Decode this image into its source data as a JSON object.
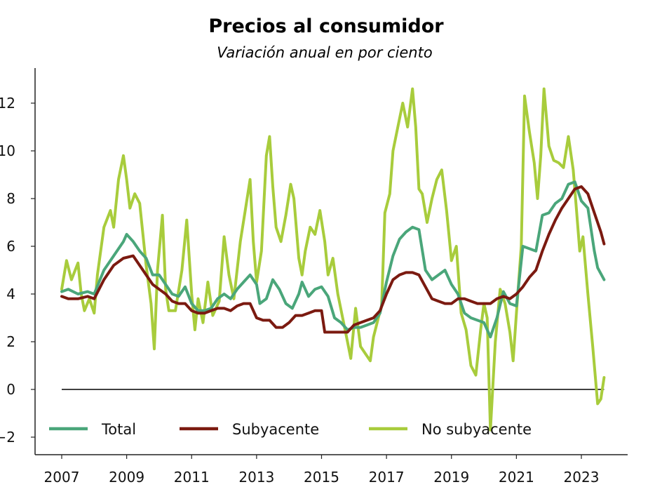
{
  "chart_data": {
    "type": "line",
    "title": "Precios al consumidor",
    "subtitle": "Variación anual en por ciento",
    "xlim": [
      2007,
      2023.8
    ],
    "ylim": [
      -2.7,
      13.5
    ],
    "yticks": [
      -2,
      0,
      2,
      4,
      6,
      8,
      10,
      12
    ],
    "xticks": [
      2007,
      2009,
      2011,
      2013,
      2015,
      2017,
      2019,
      2021,
      2023
    ],
    "legend_position": "bottom",
    "grid": false,
    "reference_line_y": 0,
    "series": [
      {
        "name": "Total",
        "color": "#4aa67a",
        "points": [
          [
            2007.0,
            4.1
          ],
          [
            2007.2,
            4.2
          ],
          [
            2007.5,
            4.0
          ],
          [
            2007.8,
            4.1
          ],
          [
            2008.0,
            4.0
          ],
          [
            2008.3,
            5.0
          ],
          [
            2008.6,
            5.6
          ],
          [
            2008.9,
            6.2
          ],
          [
            2009.0,
            6.5
          ],
          [
            2009.2,
            6.2
          ],
          [
            2009.4,
            5.8
          ],
          [
            2009.6,
            5.5
          ],
          [
            2009.8,
            4.8
          ],
          [
            2010.0,
            4.8
          ],
          [
            2010.2,
            4.4
          ],
          [
            2010.4,
            4.0
          ],
          [
            2010.6,
            3.9
          ],
          [
            2010.8,
            4.3
          ],
          [
            2011.0,
            3.6
          ],
          [
            2011.2,
            3.3
          ],
          [
            2011.4,
            3.3
          ],
          [
            2011.6,
            3.4
          ],
          [
            2011.8,
            3.8
          ],
          [
            2012.0,
            4.0
          ],
          [
            2012.2,
            3.8
          ],
          [
            2012.4,
            4.2
          ],
          [
            2012.6,
            4.5
          ],
          [
            2012.8,
            4.8
          ],
          [
            2013.0,
            4.4
          ],
          [
            2013.1,
            3.6
          ],
          [
            2013.3,
            3.8
          ],
          [
            2013.5,
            4.6
          ],
          [
            2013.7,
            4.2
          ],
          [
            2013.9,
            3.6
          ],
          [
            2014.1,
            3.4
          ],
          [
            2014.3,
            4.0
          ],
          [
            2014.4,
            4.5
          ],
          [
            2014.6,
            3.9
          ],
          [
            2014.8,
            4.2
          ],
          [
            2015.0,
            4.3
          ],
          [
            2015.2,
            3.9
          ],
          [
            2015.4,
            3.0
          ],
          [
            2015.6,
            2.8
          ],
          [
            2015.8,
            2.5
          ],
          [
            2016.0,
            2.6
          ],
          [
            2016.2,
            2.6
          ],
          [
            2016.4,
            2.7
          ],
          [
            2016.6,
            2.8
          ],
          [
            2016.8,
            3.2
          ],
          [
            2017.0,
            4.5
          ],
          [
            2017.2,
            5.6
          ],
          [
            2017.4,
            6.3
          ],
          [
            2017.6,
            6.6
          ],
          [
            2017.8,
            6.8
          ],
          [
            2018.0,
            6.7
          ],
          [
            2018.2,
            5.0
          ],
          [
            2018.4,
            4.6
          ],
          [
            2018.6,
            4.8
          ],
          [
            2018.8,
            5.0
          ],
          [
            2019.0,
            4.4
          ],
          [
            2019.2,
            4.0
          ],
          [
            2019.4,
            3.2
          ],
          [
            2019.6,
            3.0
          ],
          [
            2019.8,
            2.9
          ],
          [
            2020.0,
            2.8
          ],
          [
            2020.2,
            2.2
          ],
          [
            2020.4,
            3.0
          ],
          [
            2020.6,
            4.1
          ],
          [
            2020.8,
            3.6
          ],
          [
            2021.0,
            3.5
          ],
          [
            2021.2,
            6.0
          ],
          [
            2021.4,
            5.9
          ],
          [
            2021.6,
            5.8
          ],
          [
            2021.8,
            7.3
          ],
          [
            2022.0,
            7.4
          ],
          [
            2022.2,
            7.8
          ],
          [
            2022.4,
            8.0
          ],
          [
            2022.6,
            8.6
          ],
          [
            2022.8,
            8.7
          ],
          [
            2023.0,
            7.9
          ],
          [
            2023.2,
            7.6
          ],
          [
            2023.4,
            5.8
          ],
          [
            2023.5,
            5.1
          ],
          [
            2023.7,
            4.6
          ]
        ]
      },
      {
        "name": "Subyacente",
        "color": "#7b1a10",
        "points": [
          [
            2007.0,
            3.9
          ],
          [
            2007.2,
            3.8
          ],
          [
            2007.5,
            3.8
          ],
          [
            2007.8,
            3.9
          ],
          [
            2008.0,
            3.8
          ],
          [
            2008.3,
            4.6
          ],
          [
            2008.6,
            5.2
          ],
          [
            2008.9,
            5.5
          ],
          [
            2009.2,
            5.6
          ],
          [
            2009.4,
            5.2
          ],
          [
            2009.6,
            4.8
          ],
          [
            2009.8,
            4.4
          ],
          [
            2010.0,
            4.2
          ],
          [
            2010.2,
            4.0
          ],
          [
            2010.4,
            3.7
          ],
          [
            2010.6,
            3.6
          ],
          [
            2010.8,
            3.6
          ],
          [
            2011.0,
            3.3
          ],
          [
            2011.2,
            3.2
          ],
          [
            2011.4,
            3.2
          ],
          [
            2011.6,
            3.3
          ],
          [
            2011.8,
            3.4
          ],
          [
            2012.0,
            3.4
          ],
          [
            2012.2,
            3.3
          ],
          [
            2012.4,
            3.5
          ],
          [
            2012.6,
            3.6
          ],
          [
            2012.8,
            3.6
          ],
          [
            2013.0,
            3.0
          ],
          [
            2013.2,
            2.9
          ],
          [
            2013.4,
            2.9
          ],
          [
            2013.6,
            2.6
          ],
          [
            2013.8,
            2.6
          ],
          [
            2014.0,
            2.8
          ],
          [
            2014.2,
            3.1
          ],
          [
            2014.4,
            3.1
          ],
          [
            2014.6,
            3.2
          ],
          [
            2014.8,
            3.3
          ],
          [
            2015.0,
            3.3
          ],
          [
            2015.1,
            2.4
          ],
          [
            2015.3,
            2.4
          ],
          [
            2015.6,
            2.4
          ],
          [
            2015.8,
            2.4
          ],
          [
            2016.0,
            2.7
          ],
          [
            2016.2,
            2.8
          ],
          [
            2016.4,
            2.9
          ],
          [
            2016.6,
            3.0
          ],
          [
            2016.8,
            3.3
          ],
          [
            2017.0,
            4.0
          ],
          [
            2017.2,
            4.6
          ],
          [
            2017.4,
            4.8
          ],
          [
            2017.6,
            4.9
          ],
          [
            2017.8,
            4.9
          ],
          [
            2018.0,
            4.8
          ],
          [
            2018.2,
            4.3
          ],
          [
            2018.4,
            3.8
          ],
          [
            2018.6,
            3.7
          ],
          [
            2018.8,
            3.6
          ],
          [
            2019.0,
            3.6
          ],
          [
            2019.2,
            3.8
          ],
          [
            2019.4,
            3.8
          ],
          [
            2019.6,
            3.7
          ],
          [
            2019.8,
            3.6
          ],
          [
            2020.0,
            3.6
          ],
          [
            2020.2,
            3.6
          ],
          [
            2020.4,
            3.8
          ],
          [
            2020.6,
            3.9
          ],
          [
            2020.8,
            3.8
          ],
          [
            2021.0,
            4.0
          ],
          [
            2021.2,
            4.3
          ],
          [
            2021.4,
            4.7
          ],
          [
            2021.6,
            5.0
          ],
          [
            2021.8,
            5.8
          ],
          [
            2022.0,
            6.5
          ],
          [
            2022.2,
            7.1
          ],
          [
            2022.4,
            7.6
          ],
          [
            2022.6,
            8.0
          ],
          [
            2022.8,
            8.4
          ],
          [
            2023.0,
            8.5
          ],
          [
            2023.2,
            8.2
          ],
          [
            2023.4,
            7.4
          ],
          [
            2023.6,
            6.6
          ],
          [
            2023.7,
            6.1
          ]
        ]
      },
      {
        "name": "No subyacente",
        "color": "#a8cc3c",
        "points": [
          [
            2007.0,
            4.2
          ],
          [
            2007.15,
            5.4
          ],
          [
            2007.3,
            4.6
          ],
          [
            2007.5,
            5.3
          ],
          [
            2007.6,
            4.0
          ],
          [
            2007.7,
            3.3
          ],
          [
            2007.85,
            3.8
          ],
          [
            2008.0,
            3.2
          ],
          [
            2008.1,
            4.8
          ],
          [
            2008.3,
            6.8
          ],
          [
            2008.5,
            7.5
          ],
          [
            2008.6,
            6.8
          ],
          [
            2008.75,
            8.8
          ],
          [
            2008.9,
            9.8
          ],
          [
            2009.0,
            8.8
          ],
          [
            2009.1,
            7.6
          ],
          [
            2009.25,
            8.2
          ],
          [
            2009.4,
            7.8
          ],
          [
            2009.5,
            6.5
          ],
          [
            2009.6,
            5.2
          ],
          [
            2009.75,
            3.6
          ],
          [
            2009.85,
            1.7
          ],
          [
            2009.95,
            5.0
          ],
          [
            2010.1,
            7.3
          ],
          [
            2010.2,
            4.2
          ],
          [
            2010.3,
            3.3
          ],
          [
            2010.5,
            3.3
          ],
          [
            2010.7,
            5.0
          ],
          [
            2010.85,
            7.1
          ],
          [
            2011.0,
            4.0
          ],
          [
            2011.1,
            2.5
          ],
          [
            2011.2,
            3.8
          ],
          [
            2011.35,
            2.8
          ],
          [
            2011.5,
            4.5
          ],
          [
            2011.65,
            3.1
          ],
          [
            2011.85,
            3.7
          ],
          [
            2012.0,
            6.4
          ],
          [
            2012.15,
            4.8
          ],
          [
            2012.3,
            3.8
          ],
          [
            2012.5,
            6.2
          ],
          [
            2012.65,
            7.5
          ],
          [
            2012.8,
            8.8
          ],
          [
            2012.9,
            6.2
          ],
          [
            2013.0,
            4.5
          ],
          [
            2013.15,
            5.8
          ],
          [
            2013.3,
            9.8
          ],
          [
            2013.4,
            10.6
          ],
          [
            2013.5,
            8.5
          ],
          [
            2013.6,
            6.8
          ],
          [
            2013.75,
            6.2
          ],
          [
            2013.9,
            7.3
          ],
          [
            2014.05,
            8.6
          ],
          [
            2014.15,
            8.0
          ],
          [
            2014.3,
            5.5
          ],
          [
            2014.4,
            4.8
          ],
          [
            2014.5,
            5.8
          ],
          [
            2014.65,
            6.8
          ],
          [
            2014.8,
            6.5
          ],
          [
            2014.95,
            7.5
          ],
          [
            2015.1,
            6.2
          ],
          [
            2015.2,
            4.8
          ],
          [
            2015.35,
            5.5
          ],
          [
            2015.5,
            4.0
          ],
          [
            2015.65,
            3.0
          ],
          [
            2015.8,
            2.0
          ],
          [
            2015.9,
            1.3
          ],
          [
            2016.05,
            3.4
          ],
          [
            2016.2,
            1.8
          ],
          [
            2016.35,
            1.5
          ],
          [
            2016.5,
            1.2
          ],
          [
            2016.6,
            2.2
          ],
          [
            2016.75,
            3.0
          ],
          [
            2016.85,
            3.5
          ],
          [
            2016.95,
            7.4
          ],
          [
            2017.1,
            8.2
          ],
          [
            2017.2,
            10.0
          ],
          [
            2017.35,
            11.0
          ],
          [
            2017.5,
            12.0
          ],
          [
            2017.65,
            11.0
          ],
          [
            2017.8,
            12.6
          ],
          [
            2017.9,
            11.0
          ],
          [
            2018.0,
            8.4
          ],
          [
            2018.1,
            8.2
          ],
          [
            2018.25,
            7.0
          ],
          [
            2018.4,
            8.0
          ],
          [
            2018.55,
            8.8
          ],
          [
            2018.7,
            9.2
          ],
          [
            2018.85,
            7.5
          ],
          [
            2019.0,
            5.4
          ],
          [
            2019.15,
            6.0
          ],
          [
            2019.3,
            3.2
          ],
          [
            2019.45,
            2.5
          ],
          [
            2019.6,
            1.0
          ],
          [
            2019.75,
            0.6
          ],
          [
            2019.9,
            2.5
          ],
          [
            2020.0,
            3.6
          ],
          [
            2020.1,
            3.0
          ],
          [
            2020.2,
            -1.7
          ],
          [
            2020.35,
            2.0
          ],
          [
            2020.5,
            4.2
          ],
          [
            2020.65,
            3.6
          ],
          [
            2020.8,
            2.4
          ],
          [
            2020.9,
            1.2
          ],
          [
            2021.0,
            3.2
          ],
          [
            2021.15,
            6.0
          ],
          [
            2021.25,
            12.3
          ],
          [
            2021.4,
            10.8
          ],
          [
            2021.55,
            9.5
          ],
          [
            2021.65,
            8.0
          ],
          [
            2021.75,
            9.8
          ],
          [
            2021.85,
            12.6
          ],
          [
            2022.0,
            10.2
          ],
          [
            2022.15,
            9.6
          ],
          [
            2022.3,
            9.5
          ],
          [
            2022.45,
            9.3
          ],
          [
            2022.6,
            10.6
          ],
          [
            2022.75,
            9.2
          ],
          [
            2022.85,
            7.5
          ],
          [
            2022.95,
            5.8
          ],
          [
            2023.05,
            6.4
          ],
          [
            2023.2,
            4.0
          ],
          [
            2023.35,
            1.8
          ],
          [
            2023.5,
            -0.6
          ],
          [
            2023.6,
            -0.4
          ],
          [
            2023.7,
            0.5
          ]
        ]
      }
    ]
  }
}
